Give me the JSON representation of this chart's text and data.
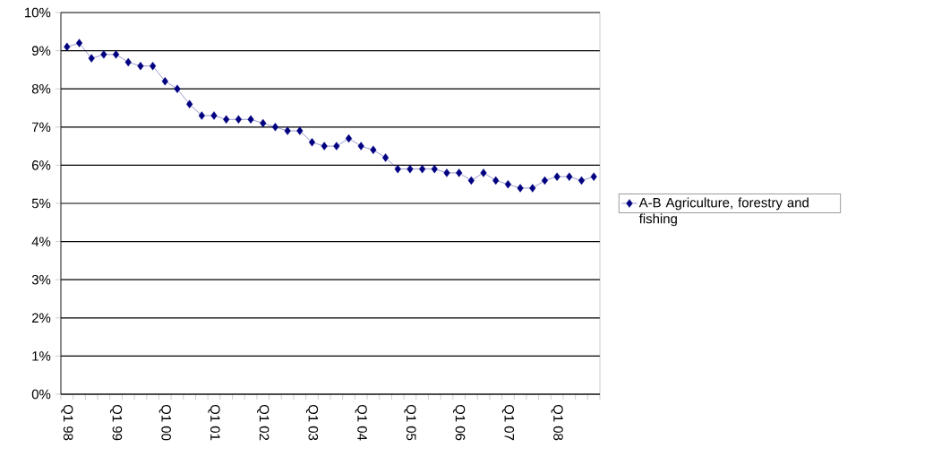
{
  "chart_data": {
    "type": "line",
    "categories": [
      "Q1 98",
      null,
      null,
      null,
      "Q1 99",
      null,
      null,
      null,
      "Q1 00",
      null,
      null,
      null,
      "Q1 01",
      null,
      null,
      null,
      "Q1 02",
      null,
      null,
      null,
      "Q1 03",
      null,
      null,
      null,
      "Q1 04",
      null,
      null,
      null,
      "Q1 05",
      null,
      null,
      null,
      "Q1 06",
      null,
      null,
      null,
      "Q1 07",
      null,
      null,
      null,
      "Q1 08",
      null,
      null,
      null
    ],
    "series": [
      {
        "name": "A-B   Agriculture, forestry and fishing",
        "color": "#000080",
        "values": [
          9.1,
          9.2,
          8.8,
          8.9,
          8.9,
          8.7,
          8.6,
          8.6,
          8.2,
          8.0,
          7.6,
          7.3,
          7.3,
          7.2,
          7.2,
          7.2,
          7.1,
          7.0,
          6.9,
          6.9,
          6.6,
          6.5,
          6.5,
          6.7,
          6.5,
          6.4,
          6.2,
          5.9,
          5.9,
          5.9,
          5.9,
          5.8,
          5.8,
          5.6,
          5.8,
          5.6,
          5.5,
          5.4,
          5.4,
          5.6,
          5.7,
          5.7,
          5.6,
          5.7
        ]
      }
    ],
    "ylim": [
      0,
      10
    ],
    "yticks": [
      {
        "value": 0,
        "label": "0%"
      },
      {
        "value": 1,
        "label": "1%"
      },
      {
        "value": 2,
        "label": "2%"
      },
      {
        "value": 3,
        "label": "3%"
      },
      {
        "value": 4,
        "label": "4%"
      },
      {
        "value": 5,
        "label": "5%"
      },
      {
        "value": 6,
        "label": "6%"
      },
      {
        "value": 7,
        "label": "7%"
      },
      {
        "value": 8,
        "label": "8%"
      },
      {
        "value": 9,
        "label": "9%"
      },
      {
        "value": 10,
        "label": "10%"
      }
    ],
    "grid": "y",
    "legend": "right",
    "marker": "diamond",
    "line_style": "solid"
  }
}
